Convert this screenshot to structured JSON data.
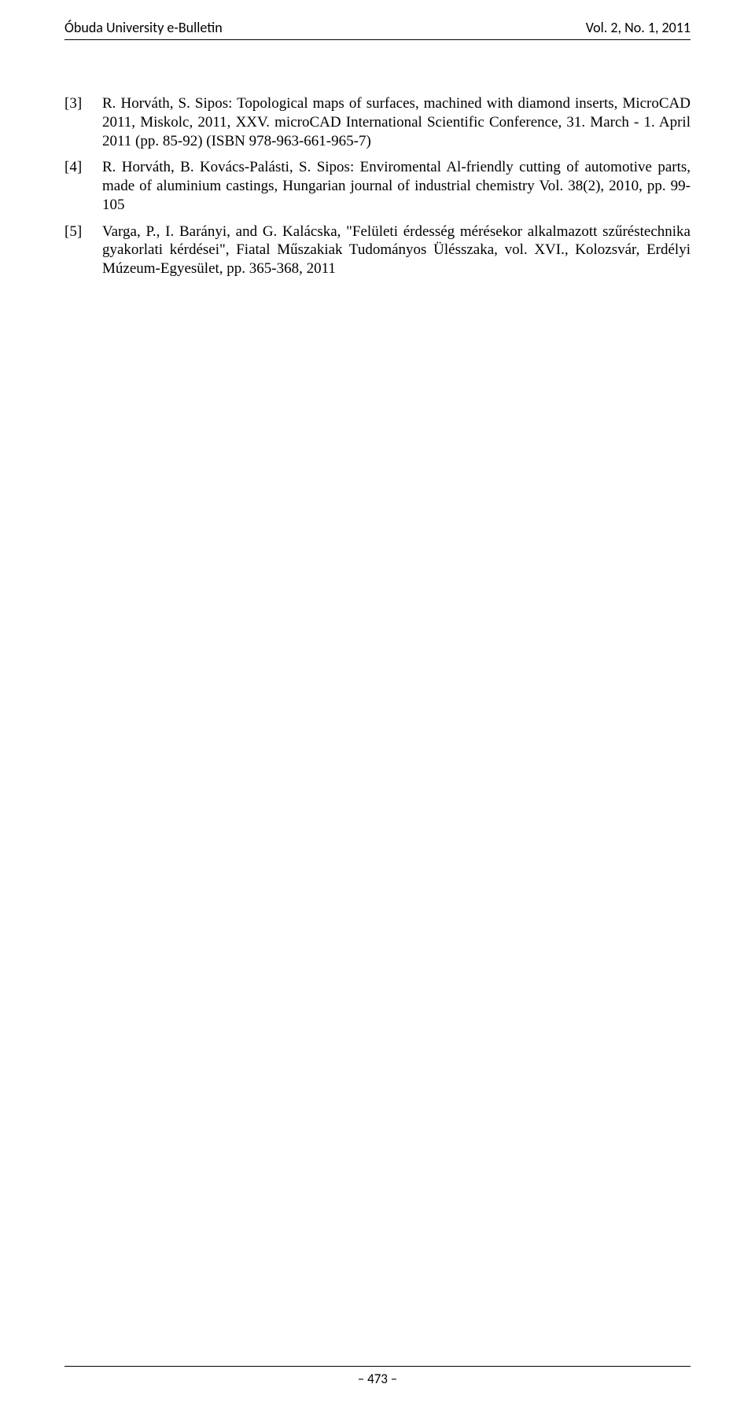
{
  "header": {
    "left": "Óbuda University e-Bulletin",
    "right": "Vol. 2, No. 1, 2011"
  },
  "references": [
    {
      "num": "[3]",
      "text": "R. Horváth, S. Sipos: Topological maps of surfaces, machined with diamond inserts, MicroCAD 2011, Miskolc, 2011, XXV. microCAD International Scientific Conference, 31. March - 1. April 2011 (pp. 85-92) (ISBN 978-963-661-965-7)"
    },
    {
      "num": "[4]",
      "text": "R. Horváth, B. Kovács-Palásti, S. Sipos: Enviromental Al-friendly cutting of automotive parts, made of aluminium castings, Hungarian journal of industrial chemistry Vol. 38(2), 2010, pp. 99-105"
    },
    {
      "num": "[5]",
      "text": "Varga, P., I. Barányi, and G. Kalácska, \"Felületi érdesség mérésekor alkalmazott szűréstechnika gyakorlati kérdései\", Fiatal Műszakiak Tudományos Ülésszaka, vol. XVI., Kolozsvár, Erdélyi Múzeum-Egyesület, pp. 365-368, 2011"
    }
  ],
  "footer": {
    "page": "– 473 –"
  }
}
